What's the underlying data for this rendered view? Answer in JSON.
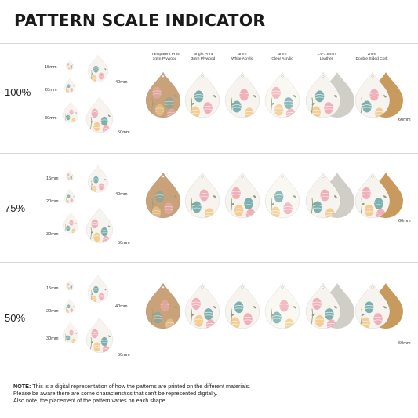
{
  "title": "PATTERN SCALE INDICATOR",
  "sizes": {
    "s15": "15mm",
    "s20": "20mm",
    "s30": "30mm",
    "s40": "40mm",
    "s50": "50mm",
    "s60": "60mm"
  },
  "materials": [
    {
      "line1": "Transparent Print",
      "line2": "3mm Plywood"
    },
    {
      "line1": "Bright Print",
      "line2": "3mm Plywood"
    },
    {
      "line1": "3mm",
      "line2": "White Acrylic"
    },
    {
      "line1": "3mm",
      "line2": "Clear Acrylic"
    },
    {
      "line1": "1.6-1.8mm",
      "line2": "Leather"
    },
    {
      "line1": "2mm",
      "line2": "Double Sided Cork"
    }
  ],
  "scales": [
    {
      "label": "100%"
    },
    {
      "label": "75%"
    },
    {
      "label": "50%"
    }
  ],
  "note": {
    "label": "NOTE:",
    "line1": "This is a digital representation of how the patterns are printed on the different materials.",
    "line2": "Please be aware there are some characteristics that can't be represented digitally.",
    "line3": "Also note, the placement of the pattern varies on each shape."
  },
  "colors": {
    "wood": "#c9a27a",
    "wood_dark": "#b48a62",
    "white": "#f7f3ee",
    "cork": "#c89a5e",
    "leather_back": "#cfcfc8",
    "pink": "#eea8b2",
    "teal": "#6ea9a7",
    "yellow": "#f2c98a",
    "green": "#8aa07a"
  }
}
